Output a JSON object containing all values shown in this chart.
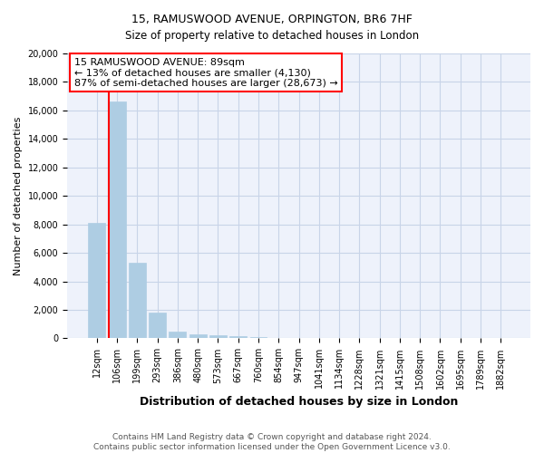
{
  "title": "15, RAMUSWOOD AVENUE, ORPINGTON, BR6 7HF",
  "subtitle": "Size of property relative to detached houses in London",
  "xlabel": "Distribution of detached houses by size in London",
  "ylabel": "Number of detached properties",
  "categories": [
    "12sqm",
    "106sqm",
    "199sqm",
    "293sqm",
    "386sqm",
    "480sqm",
    "573sqm",
    "667sqm",
    "760sqm",
    "854sqm",
    "947sqm",
    "1041sqm",
    "1134sqm",
    "1228sqm",
    "1321sqm",
    "1415sqm",
    "1508sqm",
    "1602sqm",
    "1695sqm",
    "1789sqm",
    "1882sqm"
  ],
  "values": [
    8100,
    16600,
    5300,
    1800,
    500,
    300,
    200,
    130,
    65,
    35,
    12,
    5,
    3,
    2,
    1,
    1,
    0,
    0,
    0,
    0,
    0
  ],
  "bar_color": "#aecde3",
  "bar_edge_color": "#aecde3",
  "grid_color": "#c8d4e8",
  "bg_color": "#eef2fb",
  "annotation_line1": "15 RAMUSWOOD AVENUE: 89sqm",
  "annotation_line2": "← 13% of detached houses are smaller (4,130)",
  "annotation_line3": "87% of semi-detached houses are larger (28,673) →",
  "footer_line1": "Contains HM Land Registry data © Crown copyright and database right 2024.",
  "footer_line2": "Contains public sector information licensed under the Open Government Licence v3.0.",
  "ylim": [
    0,
    20000
  ],
  "yticks": [
    0,
    2000,
    4000,
    6000,
    8000,
    10000,
    12000,
    14000,
    16000,
    18000,
    20000
  ],
  "property_line_x": 0.5,
  "title_fontsize": 9,
  "subtitle_fontsize": 8.5,
  "xlabel_fontsize": 9,
  "ylabel_fontsize": 8,
  "tick_fontsize": 7,
  "annot_fontsize": 8,
  "footer_fontsize": 6.5
}
